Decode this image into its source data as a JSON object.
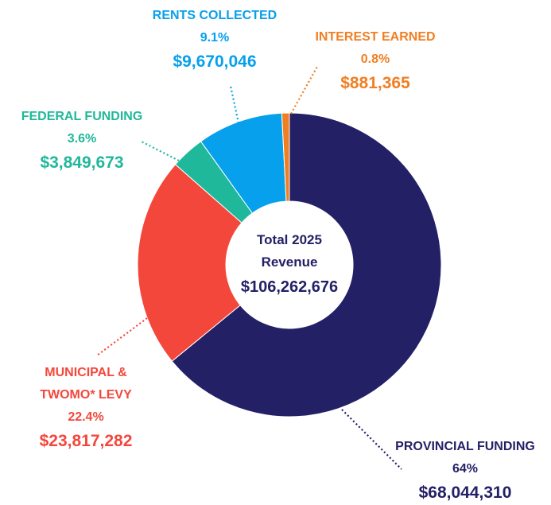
{
  "chart_data": {
    "type": "donut",
    "categories": [
      "PROVINCIAL FUNDING",
      "MUNICIPAL & TWOMO* LEVY",
      "FEDERAL FUNDING",
      "RENTS COLLECTED",
      "INTEREST EARNED"
    ],
    "values": [
      64,
      22.4,
      3.6,
      9.1,
      0.8
    ],
    "value_labels": [
      "64%",
      "22.4%",
      "3.6%",
      "9.1%",
      "0.8%"
    ],
    "amount_labels": [
      "$68,044,310",
      "$23,817,282",
      "$3,849,673",
      "$9,670,046",
      "$881,365"
    ],
    "colors": [
      "#232066",
      "#f4473c",
      "#1fb89a",
      "#06a0ec",
      "#f07f23"
    ],
    "center_label": "Total 2025 Revenue",
    "total_label": "$106,262,676"
  }
}
